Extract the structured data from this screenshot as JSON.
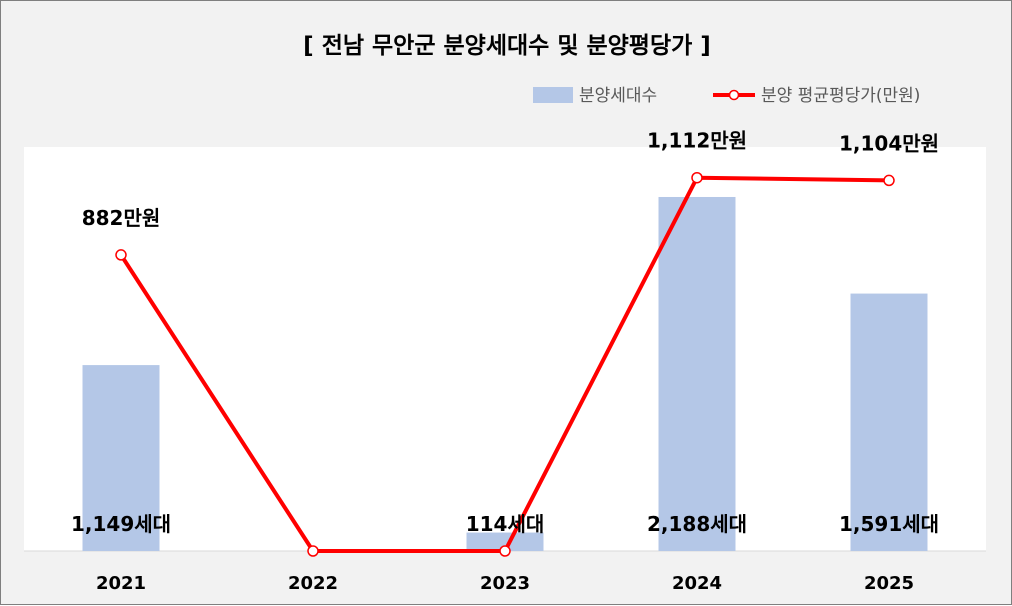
{
  "chart_data": {
    "type": "bar",
    "title": "[ 전남 무안군 분양세대수 및 분양평당가 ]",
    "categories": [
      "2021",
      "2022",
      "2023",
      "2024",
      "2025"
    ],
    "series": [
      {
        "name": "분양세대수",
        "type": "bar",
        "axis": "primary",
        "values": [
          1149,
          0,
          114,
          2188,
          1591
        ],
        "labels": [
          "1,149세대",
          "",
          "114세대",
          "2,188세대",
          "1,591세대"
        ],
        "color": "#b4c7e7"
      },
      {
        "name": "분양 평균평당가(만원)",
        "type": "line",
        "axis": "secondary",
        "values": [
          882,
          0,
          0,
          1112,
          1104
        ],
        "labels": [
          "882만원",
          "",
          "",
          "1,112만원",
          "1,104만원"
        ],
        "color": "#ff0000"
      }
    ],
    "legend_position": "top-right",
    "grid": false
  }
}
